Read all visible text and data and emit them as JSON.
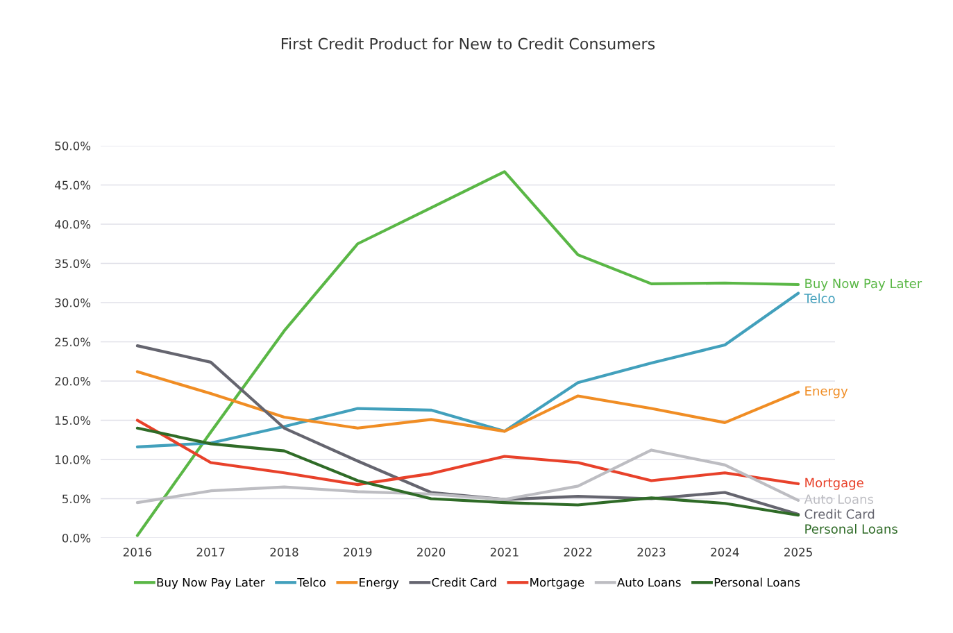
{
  "chart_data": {
    "type": "line",
    "title": "First Credit Product for New to Credit Consumers",
    "categories": [
      "2016",
      "2017",
      "2018",
      "2019",
      "2020",
      "2021",
      "2022",
      "2023",
      "2024",
      "2025"
    ],
    "series": [
      {
        "name": "Buy Now Pay Later",
        "color": "#5ab746",
        "values": [
          0.3,
          13.5,
          26.4,
          37.5,
          42.1,
          46.7,
          36.1,
          32.4,
          32.5,
          32.3
        ]
      },
      {
        "name": "Telco",
        "color": "#42a0bc",
        "values": [
          11.6,
          12.1,
          14.2,
          16.5,
          16.3,
          13.6,
          19.8,
          22.3,
          24.6,
          31.2
        ]
      },
      {
        "name": "Energy",
        "color": "#f08d24",
        "values": [
          21.2,
          18.4,
          15.4,
          14.0,
          15.1,
          13.6,
          18.1,
          16.5,
          14.7,
          18.6
        ]
      },
      {
        "name": "Credit Card",
        "color": "#65656f",
        "values": [
          24.5,
          22.4,
          14.0,
          9.8,
          5.8,
          4.9,
          5.3,
          5.0,
          5.8,
          3.0
        ]
      },
      {
        "name": "Mortgage",
        "color": "#e8412a",
        "values": [
          15.0,
          9.6,
          8.3,
          6.8,
          8.2,
          10.4,
          9.6,
          7.3,
          8.3,
          6.9
        ]
      },
      {
        "name": "Auto Loans",
        "color": "#bdbdc2",
        "values": [
          4.5,
          6.0,
          6.5,
          5.9,
          5.6,
          4.9,
          6.6,
          11.2,
          9.3,
          4.8
        ]
      },
      {
        "name": "Personal Loans",
        "color": "#2f6b27",
        "values": [
          14.0,
          12.0,
          11.1,
          7.3,
          5.0,
          4.5,
          4.2,
          5.1,
          4.4,
          2.9
        ]
      }
    ],
    "ylim": [
      0,
      50
    ],
    "yticks": [
      {
        "value": 0,
        "label": "0.0%"
      },
      {
        "value": 5,
        "label": "5.0%"
      },
      {
        "value": 10,
        "label": "10.0%"
      },
      {
        "value": 15,
        "label": "15.0%"
      },
      {
        "value": 20,
        "label": "20.0%"
      },
      {
        "value": 25,
        "label": "25.0%"
      },
      {
        "value": 30,
        "label": "30.0%"
      },
      {
        "value": 35,
        "label": "35.0%"
      },
      {
        "value": 40,
        "label": "40.0%"
      },
      {
        "value": 45,
        "label": "45.0%"
      },
      {
        "value": 50,
        "label": "50.0%"
      }
    ],
    "grid": "y",
    "legend": "bottom",
    "line_style": "solid",
    "marker": "none"
  }
}
